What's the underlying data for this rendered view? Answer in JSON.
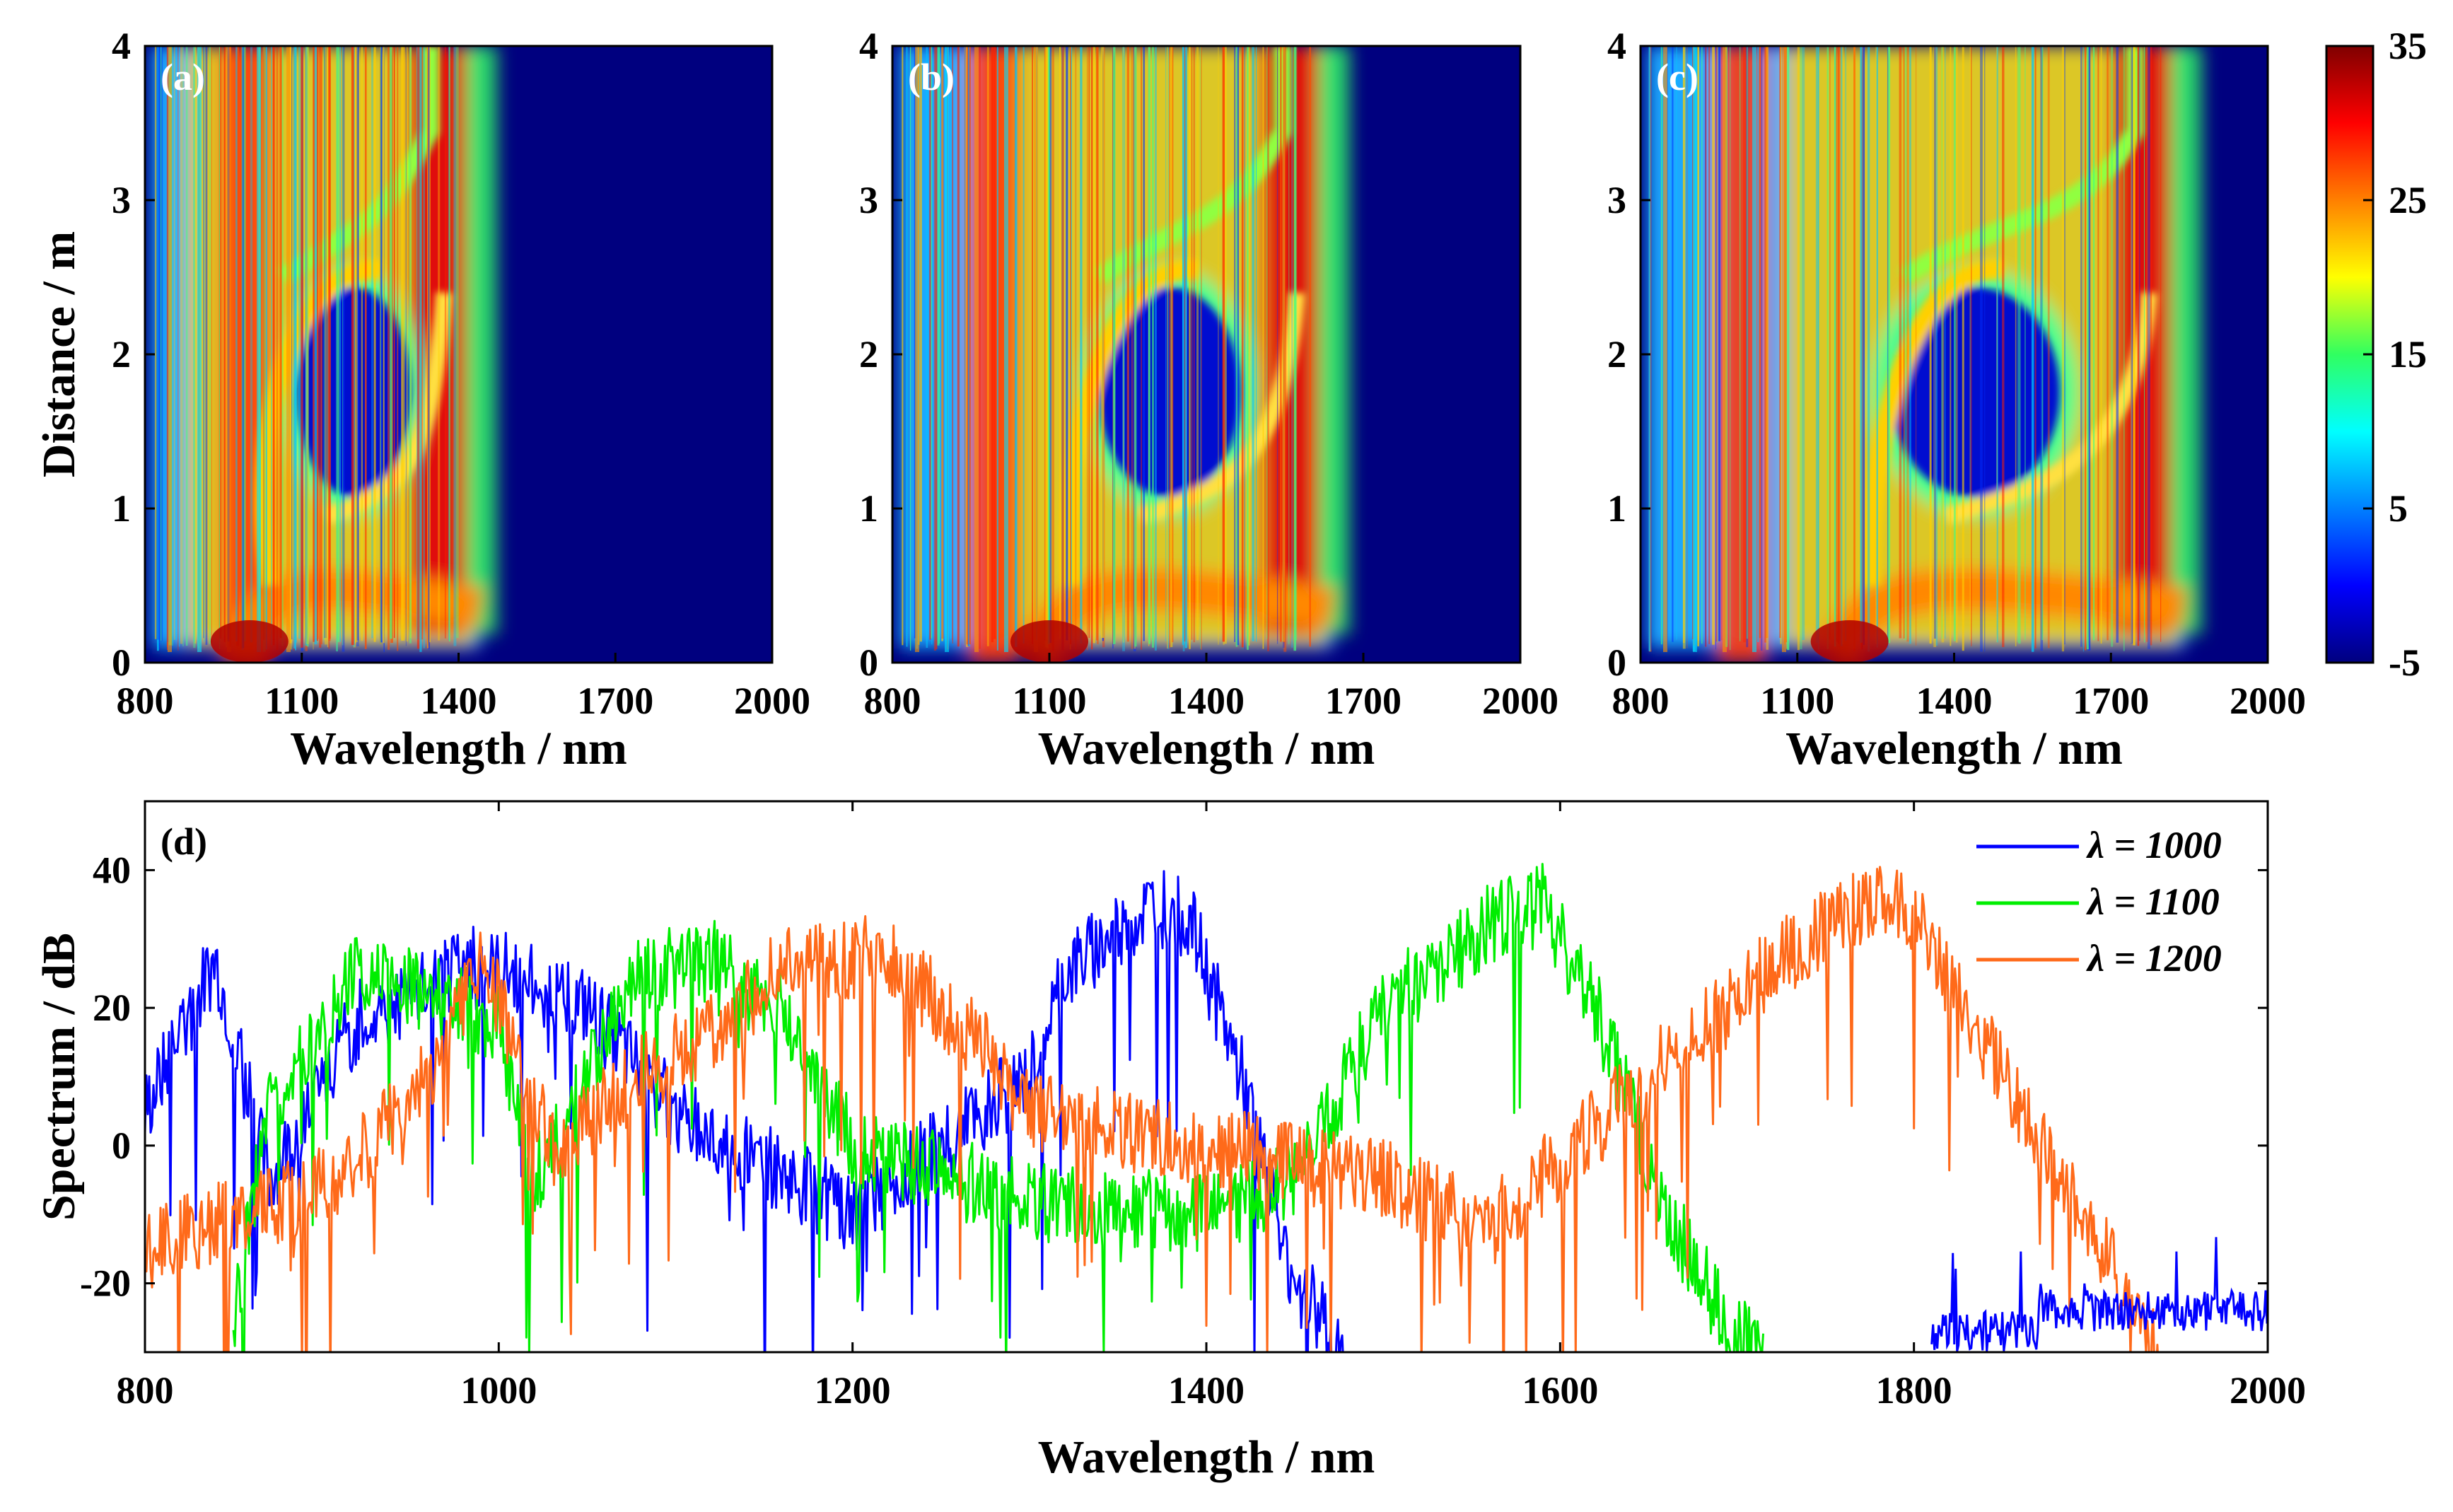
{
  "chart_data": [
    {
      "panel": "(a)",
      "type": "heatmap",
      "xlabel": "Wavelength / nm",
      "ylabel": "Distance / m",
      "xlim": [
        800,
        2000
      ],
      "ylim": [
        0,
        4
      ],
      "xticks": [
        "800",
        "1100",
        "1400",
        "1700",
        "2000"
      ],
      "yticks": [
        "0",
        "1",
        "2",
        "3",
        "4"
      ],
      "pump_wavelength_nm": 1000,
      "main_band_edge_nm": 1400,
      "valley_center": [
        1200,
        1.8
      ]
    },
    {
      "panel": "(b)",
      "type": "heatmap",
      "xlabel": "Wavelength / nm",
      "ylabel": "",
      "xlim": [
        800,
        2000
      ],
      "ylim": [
        0,
        4
      ],
      "xticks": [
        "800",
        "1100",
        "1400",
        "1700",
        "2000"
      ],
      "yticks": [
        "0",
        "1",
        "2",
        "3",
        "4"
      ],
      "pump_wavelength_nm": 1100,
      "main_band_edge_nm": 1600,
      "valley_center": [
        1330,
        1.8
      ]
    },
    {
      "panel": "(c)",
      "type": "heatmap",
      "xlabel": "Wavelength / nm",
      "ylabel": "",
      "xlim": [
        800,
        2000
      ],
      "ylim": [
        0,
        4
      ],
      "xticks": [
        "800",
        "1100",
        "1400",
        "1700",
        "2000"
      ],
      "yticks": [
        "0",
        "1",
        "2",
        "3",
        "4"
      ],
      "pump_wavelength_nm": 1200,
      "main_band_edge_nm": 1800,
      "valley_center": [
        1440,
        1.8
      ]
    },
    {
      "panel": "colorbar",
      "type": "heatmap",
      "range": [
        -5,
        35
      ],
      "ticks": [
        "35",
        "25",
        "15",
        "5",
        "-5"
      ],
      "tick_values": [
        35,
        25,
        15,
        5,
        -5
      ]
    },
    {
      "panel": "(d)",
      "type": "line",
      "xlabel": "Wavelength / nm",
      "ylabel": "Spectrum / dB",
      "xlim": [
        800,
        2000
      ],
      "ylim": [
        -30,
        50
      ],
      "xticks": [
        "800",
        "1000",
        "1200",
        "1400",
        "1600",
        "1800",
        "2000"
      ],
      "yticks": [
        "-20",
        "0",
        "20",
        "40"
      ],
      "legend_position": "top-right",
      "series": [
        {
          "name": "λ = 1000",
          "color": "#0000ff",
          "x": [
            800,
            840,
            870,
            920,
            980,
            1010,
            1050,
            1100,
            1200,
            1250,
            1300,
            1320,
            1370,
            1390,
            1420,
            1450,
            1480
          ],
          "y": [
            5,
            27,
            -5,
            18,
            26,
            25,
            20,
            5,
            -10,
            0,
            10,
            25,
            35,
            33,
            10,
            -20,
            -30
          ]
        },
        {
          "name": "λ = 1100",
          "color": "#00ee00",
          "x": [
            850,
            870,
            920,
            1000,
            1020,
            1080,
            1120,
            1160,
            1200,
            1300,
            1400,
            1450,
            1500,
            1560,
            1590,
            1620,
            1660,
            1700,
            1715
          ],
          "y": [
            -25,
            5,
            26,
            18,
            -5,
            25,
            27,
            20,
            0,
            -8,
            -10,
            -5,
            20,
            32,
            35,
            20,
            -10,
            -28,
            -30
          ]
        },
        {
          "name": "λ = 1200",
          "color": "#ff6a1a",
          "x": [
            800,
            910,
            960,
            990,
            1030,
            1080,
            1130,
            1160,
            1220,
            1270,
            1300,
            1400,
            1500,
            1560,
            1650,
            1720,
            1770,
            1800,
            1850,
            1900,
            1940
          ],
          "y": [
            -15,
            -5,
            10,
            28,
            0,
            10,
            18,
            26,
            28,
            15,
            5,
            0,
            -5,
            -12,
            10,
            26,
            35,
            34,
            10,
            -12,
            -30
          ]
        }
      ]
    }
  ]
}
